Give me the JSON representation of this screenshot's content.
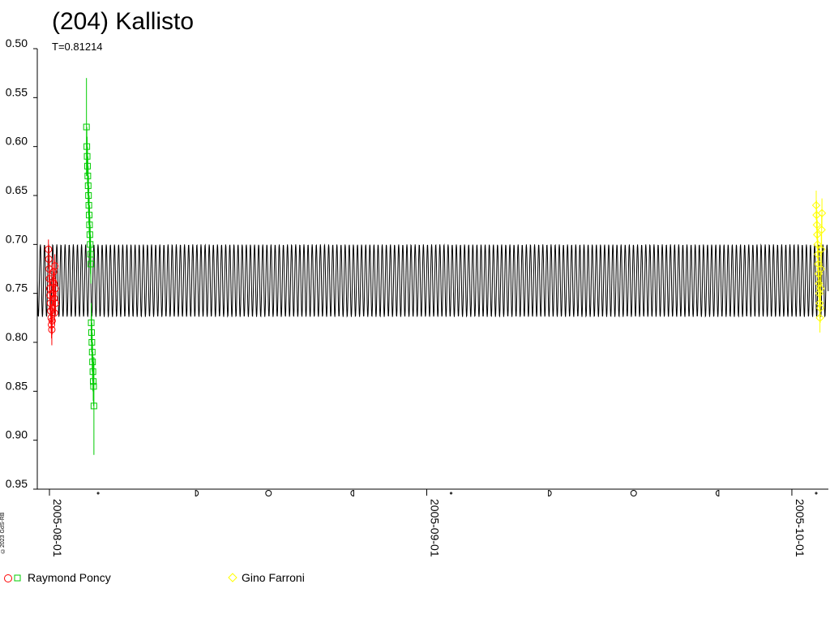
{
  "chart_data": {
    "type": "scatter",
    "title": "(204) Kallisto",
    "subtitle": "T=0.81214",
    "y_inverted": true,
    "ylim": [
      0.5,
      0.95
    ],
    "y_ticks": [
      "0.50",
      "0.55",
      "0.60",
      "0.65",
      "0.70",
      "0.75",
      "0.80",
      "0.85",
      "0.90",
      "0.95"
    ],
    "x_ticks": [
      "2005-08-01",
      "2005-09-01",
      "2005-10-01"
    ],
    "xlim_dates": [
      "2005-07-31T00:00",
      "2005-10-04T00:00"
    ],
    "moon_phases": [
      {
        "date": "2005-08-05",
        "phase": "new"
      },
      {
        "date": "2005-08-13",
        "phase": "first-quarter"
      },
      {
        "date": "2005-08-19",
        "phase": "full"
      },
      {
        "date": "2005-08-26",
        "phase": "last-quarter"
      },
      {
        "date": "2005-09-03",
        "phase": "new"
      },
      {
        "date": "2005-09-11",
        "phase": "first-quarter"
      },
      {
        "date": "2005-09-18",
        "phase": "full"
      },
      {
        "date": "2005-09-25",
        "phase": "last-quarter"
      },
      {
        "date": "2005-10-03",
        "phase": "new"
      }
    ],
    "model_curve": {
      "period_days": 0.33839,
      "mean_mag": 0.737,
      "amplitude": 0.037,
      "color": "#000000"
    },
    "series": [
      {
        "name": "Raymond Poncy",
        "color": "#ff0000",
        "marker": "circle",
        "legend": true,
        "points": [
          {
            "date": "2005-07-31T22:00",
            "y": 0.705,
            "err": 0.01
          },
          {
            "date": "2005-07-31T22:40",
            "y": 0.715,
            "err": 0.01
          },
          {
            "date": "2005-07-31T23:20",
            "y": 0.725,
            "err": 0.012
          },
          {
            "date": "2005-08-01T00:00",
            "y": 0.735,
            "err": 0.012
          },
          {
            "date": "2005-08-01T00:40",
            "y": 0.745,
            "err": 0.012
          },
          {
            "date": "2005-08-01T01:20",
            "y": 0.752,
            "err": 0.012
          },
          {
            "date": "2005-08-01T02:00",
            "y": 0.76,
            "err": 0.012
          },
          {
            "date": "2005-08-01T02:40",
            "y": 0.768,
            "err": 0.012
          },
          {
            "date": "2005-08-01T03:20",
            "y": 0.775,
            "err": 0.014
          },
          {
            "date": "2005-08-01T04:00",
            "y": 0.782,
            "err": 0.014
          },
          {
            "date": "2005-08-01T04:40",
            "y": 0.787,
            "err": 0.016
          },
          {
            "date": "2005-08-01T05:20",
            "y": 0.778,
            "err": 0.014
          },
          {
            "date": "2005-08-01T06:00",
            "y": 0.765,
            "err": 0.012
          },
          {
            "date": "2005-08-01T06:40",
            "y": 0.75,
            "err": 0.012
          },
          {
            "date": "2005-08-01T07:20",
            "y": 0.738,
            "err": 0.012
          },
          {
            "date": "2005-08-01T08:00",
            "y": 0.728,
            "err": 0.012
          },
          {
            "date": "2005-08-01T08:40",
            "y": 0.74,
            "err": 0.012
          },
          {
            "date": "2005-08-01T09:20",
            "y": 0.755,
            "err": 0.012
          },
          {
            "date": "2005-08-01T10:00",
            "y": 0.77,
            "err": 0.012
          },
          {
            "date": "2005-08-01T10:40",
            "y": 0.722,
            "err": 0.012
          },
          {
            "date": "2005-08-01T11:20",
            "y": 0.745,
            "err": 0.012
          },
          {
            "date": "2005-08-01T12:00",
            "y": 0.76,
            "err": 0.012
          }
        ]
      },
      {
        "name": "Raymond Poncy",
        "color": "#00cc00",
        "marker": "square",
        "legend": true,
        "points": [
          {
            "date": "2005-08-04T01:00",
            "y": 0.58,
            "err": 0.05
          },
          {
            "date": "2005-08-04T01:40",
            "y": 0.6,
            "err": 0.02
          },
          {
            "date": "2005-08-04T02:20",
            "y": 0.61,
            "err": 0.02
          },
          {
            "date": "2005-08-04T03:00",
            "y": 0.62,
            "err": 0.02
          },
          {
            "date": "2005-08-04T03:40",
            "y": 0.63,
            "err": 0.02
          },
          {
            "date": "2005-08-04T04:20",
            "y": 0.64,
            "err": 0.02
          },
          {
            "date": "2005-08-04T05:00",
            "y": 0.65,
            "err": 0.02
          },
          {
            "date": "2005-08-04T05:40",
            "y": 0.66,
            "err": 0.02
          },
          {
            "date": "2005-08-04T06:20",
            "y": 0.67,
            "err": 0.02
          },
          {
            "date": "2005-08-04T07:00",
            "y": 0.68,
            "err": 0.02
          },
          {
            "date": "2005-08-04T07:40",
            "y": 0.69,
            "err": 0.02
          },
          {
            "date": "2005-08-04T08:20",
            "y": 0.7,
            "err": 0.02
          },
          {
            "date": "2005-08-04T09:00",
            "y": 0.71,
            "err": 0.02
          },
          {
            "date": "2005-08-04T09:40",
            "y": 0.72,
            "err": 0.02
          },
          {
            "date": "2005-08-04T10:20",
            "y": 0.78,
            "err": 0.02
          },
          {
            "date": "2005-08-04T11:00",
            "y": 0.79,
            "err": 0.02
          },
          {
            "date": "2005-08-04T11:40",
            "y": 0.8,
            "err": 0.02
          },
          {
            "date": "2005-08-04T12:20",
            "y": 0.81,
            "err": 0.02
          },
          {
            "date": "2005-08-04T13:00",
            "y": 0.82,
            "err": 0.02
          },
          {
            "date": "2005-08-04T13:40",
            "y": 0.83,
            "err": 0.02
          },
          {
            "date": "2005-08-04T14:20",
            "y": 0.84,
            "err": 0.02
          },
          {
            "date": "2005-08-04T15:00",
            "y": 0.845,
            "err": 0.02
          },
          {
            "date": "2005-08-04T15:40",
            "y": 0.865,
            "err": 0.05
          }
        ]
      },
      {
        "name": "Gino Farroni",
        "color": "#ffff00",
        "marker": "diamond",
        "legend": true,
        "points": [
          {
            "date": "2005-10-03T00:00",
            "y": 0.66,
            "err": 0.015
          },
          {
            "date": "2005-10-03T00:40",
            "y": 0.67,
            "err": 0.015
          },
          {
            "date": "2005-10-03T01:20",
            "y": 0.68,
            "err": 0.015
          },
          {
            "date": "2005-10-03T02:00",
            "y": 0.69,
            "err": 0.015
          },
          {
            "date": "2005-10-03T02:40",
            "y": 0.7,
            "err": 0.015
          },
          {
            "date": "2005-10-03T03:20",
            "y": 0.71,
            "err": 0.015
          },
          {
            "date": "2005-10-03T04:00",
            "y": 0.72,
            "err": 0.015
          },
          {
            "date": "2005-10-03T04:40",
            "y": 0.73,
            "err": 0.015
          },
          {
            "date": "2005-10-03T05:20",
            "y": 0.74,
            "err": 0.015
          },
          {
            "date": "2005-10-03T06:00",
            "y": 0.75,
            "err": 0.015
          },
          {
            "date": "2005-10-03T06:40",
            "y": 0.76,
            "err": 0.015
          },
          {
            "date": "2005-10-03T07:20",
            "y": 0.775,
            "err": 0.015
          },
          {
            "date": "2005-10-03T08:00",
            "y": 0.765,
            "err": 0.015
          },
          {
            "date": "2005-10-03T08:40",
            "y": 0.745,
            "err": 0.015
          },
          {
            "date": "2005-10-03T09:20",
            "y": 0.725,
            "err": 0.015
          },
          {
            "date": "2005-10-03T10:00",
            "y": 0.705,
            "err": 0.015
          },
          {
            "date": "2005-10-03T10:40",
            "y": 0.685,
            "err": 0.015
          },
          {
            "date": "2005-10-03T11:20",
            "y": 0.668,
            "err": 0.015
          }
        ]
      }
    ]
  },
  "copyright": "©2023 GdS-RB",
  "legend": {
    "entry1_label": "Raymond Poncy",
    "entry2_label": "Gino Farroni"
  }
}
